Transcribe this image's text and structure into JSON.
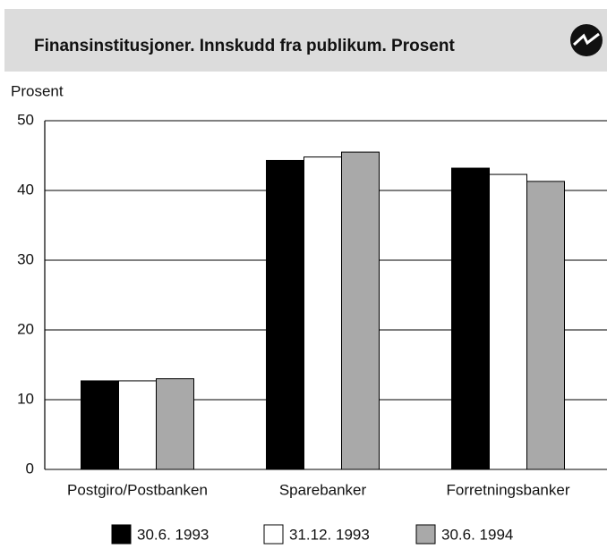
{
  "chart_data": {
    "type": "bar",
    "title": "Finansinstitusjoner. Innskudd fra publikum. Prosent",
    "y_label": "Prosent",
    "categories": [
      "Postgiro/Postbanken",
      "Sparebanker",
      "Forretningsbanker"
    ],
    "series": [
      {
        "name": "30.6. 1993",
        "color": "#000000",
        "values": [
          12.7,
          44.3,
          43.2
        ]
      },
      {
        "name": "31.12. 1993",
        "color": "#ffffff",
        "values": [
          12.7,
          44.8,
          42.3
        ]
      },
      {
        "name": "30.6. 1994",
        "color": "#a9a9a9",
        "values": [
          13.0,
          45.5,
          41.3
        ]
      }
    ],
    "ylim": [
      0,
      50
    ],
    "yticks": [
      0,
      10,
      20,
      30,
      40,
      50
    ],
    "grid": true,
    "legend": "bottom"
  }
}
